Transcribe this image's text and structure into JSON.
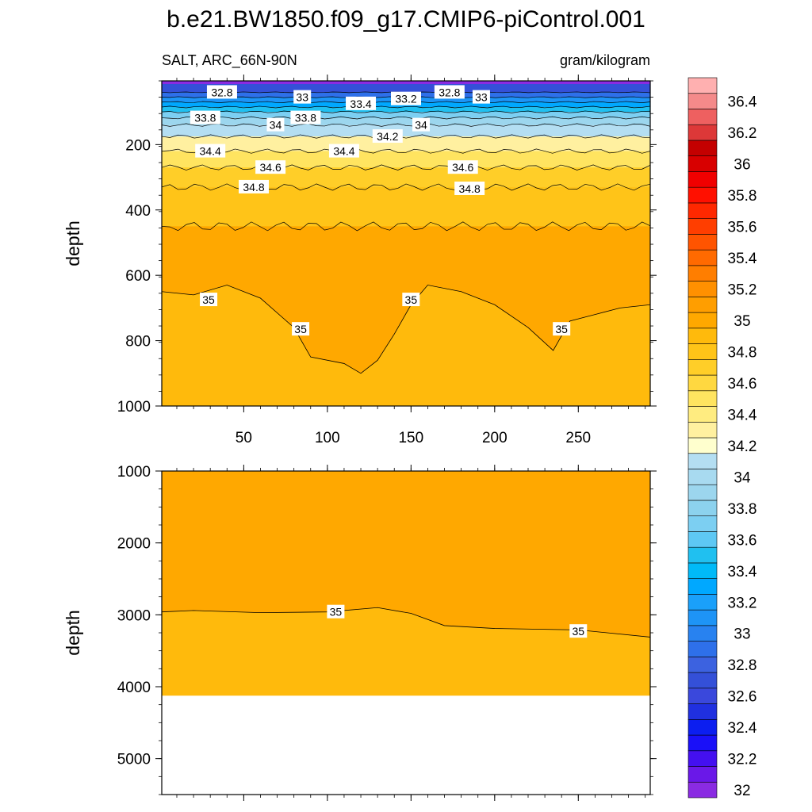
{
  "figure": {
    "title": "b.e21.BW1850.f09_g17.CMIP6-piControl.001",
    "variable_label": "SALT, ARC_66N-90N",
    "units_label": "gram/kilogram"
  },
  "chart_data": [
    {
      "type": "heatmap",
      "panel": "upper",
      "xlim": [
        1,
        293
      ],
      "ylim": [
        1000,
        5
      ],
      "y_reversed": true,
      "xticks": [
        50,
        100,
        150,
        200,
        250
      ],
      "yticks": [
        200,
        400,
        600,
        800,
        1000
      ],
      "ylabel": "depth",
      "contours": [
        {
          "level": 32.8,
          "depth": 40
        },
        {
          "level": 33,
          "depth": 55
        },
        {
          "level": 33.2,
          "depth": 70
        },
        {
          "level": 33.4,
          "depth": 85
        },
        {
          "level": 33.6,
          "depth": 100
        },
        {
          "level": 33.8,
          "depth": 118
        },
        {
          "level": 34,
          "depth": 140
        },
        {
          "level": 34.2,
          "depth": 175
        },
        {
          "level": 34.4,
          "depth": 220
        },
        {
          "level": 34.6,
          "depth": 270
        },
        {
          "level": 34.8,
          "depth": 330
        },
        {
          "level": 34.9,
          "depth": 450
        },
        {
          "level": 35,
          "points": [
            [
              1,
              650
            ],
            [
              20,
              660
            ],
            [
              40,
              630
            ],
            [
              60,
              670
            ],
            [
              80,
              760
            ],
            [
              90,
              850
            ],
            [
              110,
              870
            ],
            [
              120,
              900
            ],
            [
              130,
              860
            ],
            [
              140,
              780
            ],
            [
              150,
              690
            ],
            [
              160,
              630
            ],
            [
              180,
              650
            ],
            [
              200,
              690
            ],
            [
              220,
              760
            ],
            [
              235,
              830
            ],
            [
              245,
              740
            ],
            [
              260,
              720
            ],
            [
              275,
              700
            ],
            [
              293,
              690
            ]
          ]
        }
      ],
      "contour_labels": [
        {
          "text": "32.8",
          "x": 37,
          "y": 40
        },
        {
          "text": "33",
          "x": 85,
          "y": 55
        },
        {
          "text": "33.4",
          "x": 120,
          "y": 75
        },
        {
          "text": "33.2",
          "x": 147,
          "y": 60
        },
        {
          "text": "32.8",
          "x": 173,
          "y": 40
        },
        {
          "text": "33",
          "x": 192,
          "y": 55
        },
        {
          "text": "33.8",
          "x": 27,
          "y": 118
        },
        {
          "text": "34",
          "x": 69,
          "y": 140
        },
        {
          "text": "33.8",
          "x": 87,
          "y": 118
        },
        {
          "text": "34.2",
          "x": 136,
          "y": 175
        },
        {
          "text": "34",
          "x": 156,
          "y": 140
        },
        {
          "text": "34.4",
          "x": 30,
          "y": 220
        },
        {
          "text": "34.4",
          "x": 110,
          "y": 220
        },
        {
          "text": "34.6",
          "x": 66,
          "y": 270
        },
        {
          "text": "34.6",
          "x": 181,
          "y": 270
        },
        {
          "text": "34.8",
          "x": 56,
          "y": 330
        },
        {
          "text": "34.8",
          "x": 185,
          "y": 335
        },
        {
          "text": "35",
          "x": 29,
          "y": 675
        },
        {
          "text": "35",
          "x": 84,
          "y": 765
        },
        {
          "text": "35",
          "x": 150,
          "y": 675
        },
        {
          "text": "35",
          "x": 240,
          "y": 765
        }
      ]
    },
    {
      "type": "heatmap",
      "panel": "lower",
      "xlim": [
        1,
        293
      ],
      "ylim": [
        1000,
        5500
      ],
      "y_reversed": true,
      "yticks": [
        1000,
        2000,
        3000,
        4000,
        5000
      ],
      "ylabel": "depth",
      "bottom_depth": 4125,
      "contours": [
        {
          "level": 35,
          "points": [
            [
              1,
              2960
            ],
            [
              20,
              2940
            ],
            [
              60,
              2970
            ],
            [
              100,
              2960
            ],
            [
              130,
              2900
            ],
            [
              150,
              2980
            ],
            [
              170,
              3150
            ],
            [
              200,
              3190
            ],
            [
              250,
              3210
            ],
            [
              293,
              3310
            ]
          ]
        }
      ],
      "contour_labels": [
        {
          "text": "35",
          "x": 105,
          "y": 2960
        },
        {
          "text": "35",
          "x": 250,
          "y": 3230
        }
      ]
    }
  ],
  "colorbar": {
    "levels": [
      32,
      32.1,
      32.2,
      32.3,
      32.4,
      32.5,
      32.6,
      32.7,
      32.8,
      32.9,
      33,
      33.1,
      33.2,
      33.3,
      33.4,
      33.5,
      33.6,
      33.7,
      33.8,
      33.9,
      34,
      34.1,
      34.2,
      34.3,
      34.4,
      34.5,
      34.6,
      34.7,
      34.8,
      34.9,
      35,
      35.1,
      35.2,
      35.3,
      35.4,
      35.5,
      35.6,
      35.7,
      35.8,
      35.9,
      36,
      36.1,
      36.2,
      36.3,
      36.4,
      36.5
    ],
    "tick_labels": [
      "32",
      "32.2",
      "32.4",
      "32.6",
      "32.8",
      "33",
      "33.2",
      "33.4",
      "33.6",
      "33.8",
      "34",
      "34.2",
      "34.4",
      "34.6",
      "34.8",
      "35",
      "35.2",
      "35.4",
      "35.6",
      "35.8",
      "36",
      "36.2",
      "36.4"
    ],
    "colors": [
      "#8a2be2",
      "#6a18e8",
      "#4410f0",
      "#1a10f8",
      "#0c1ef0",
      "#2030e0",
      "#3a48dc",
      "#3450d8",
      "#3c62e0",
      "#2e70ea",
      "#2882f0",
      "#1e94f6",
      "#1aa0fa",
      "#00a8ff",
      "#00baf8",
      "#20c0f0",
      "#5ec8f4",
      "#7ccff2",
      "#8cd2ee",
      "#9cd6ee",
      "#a8daf0",
      "#b4def2",
      "#ffffce",
      "#fff0a0",
      "#ffec80",
      "#ffe460",
      "#ffd840",
      "#ffce28",
      "#ffc418",
      "#ffba0c",
      "#ffa800",
      "#ff9e00",
      "#ff9000",
      "#ff7e00",
      "#ff6a00",
      "#ff5400",
      "#ff3e00",
      "#ff2800",
      "#ff1000",
      "#f00000",
      "#d80000",
      "#c40000",
      "#dd3838",
      "#ee6060",
      "#f48a8a",
      "#ffb0b0"
    ]
  }
}
